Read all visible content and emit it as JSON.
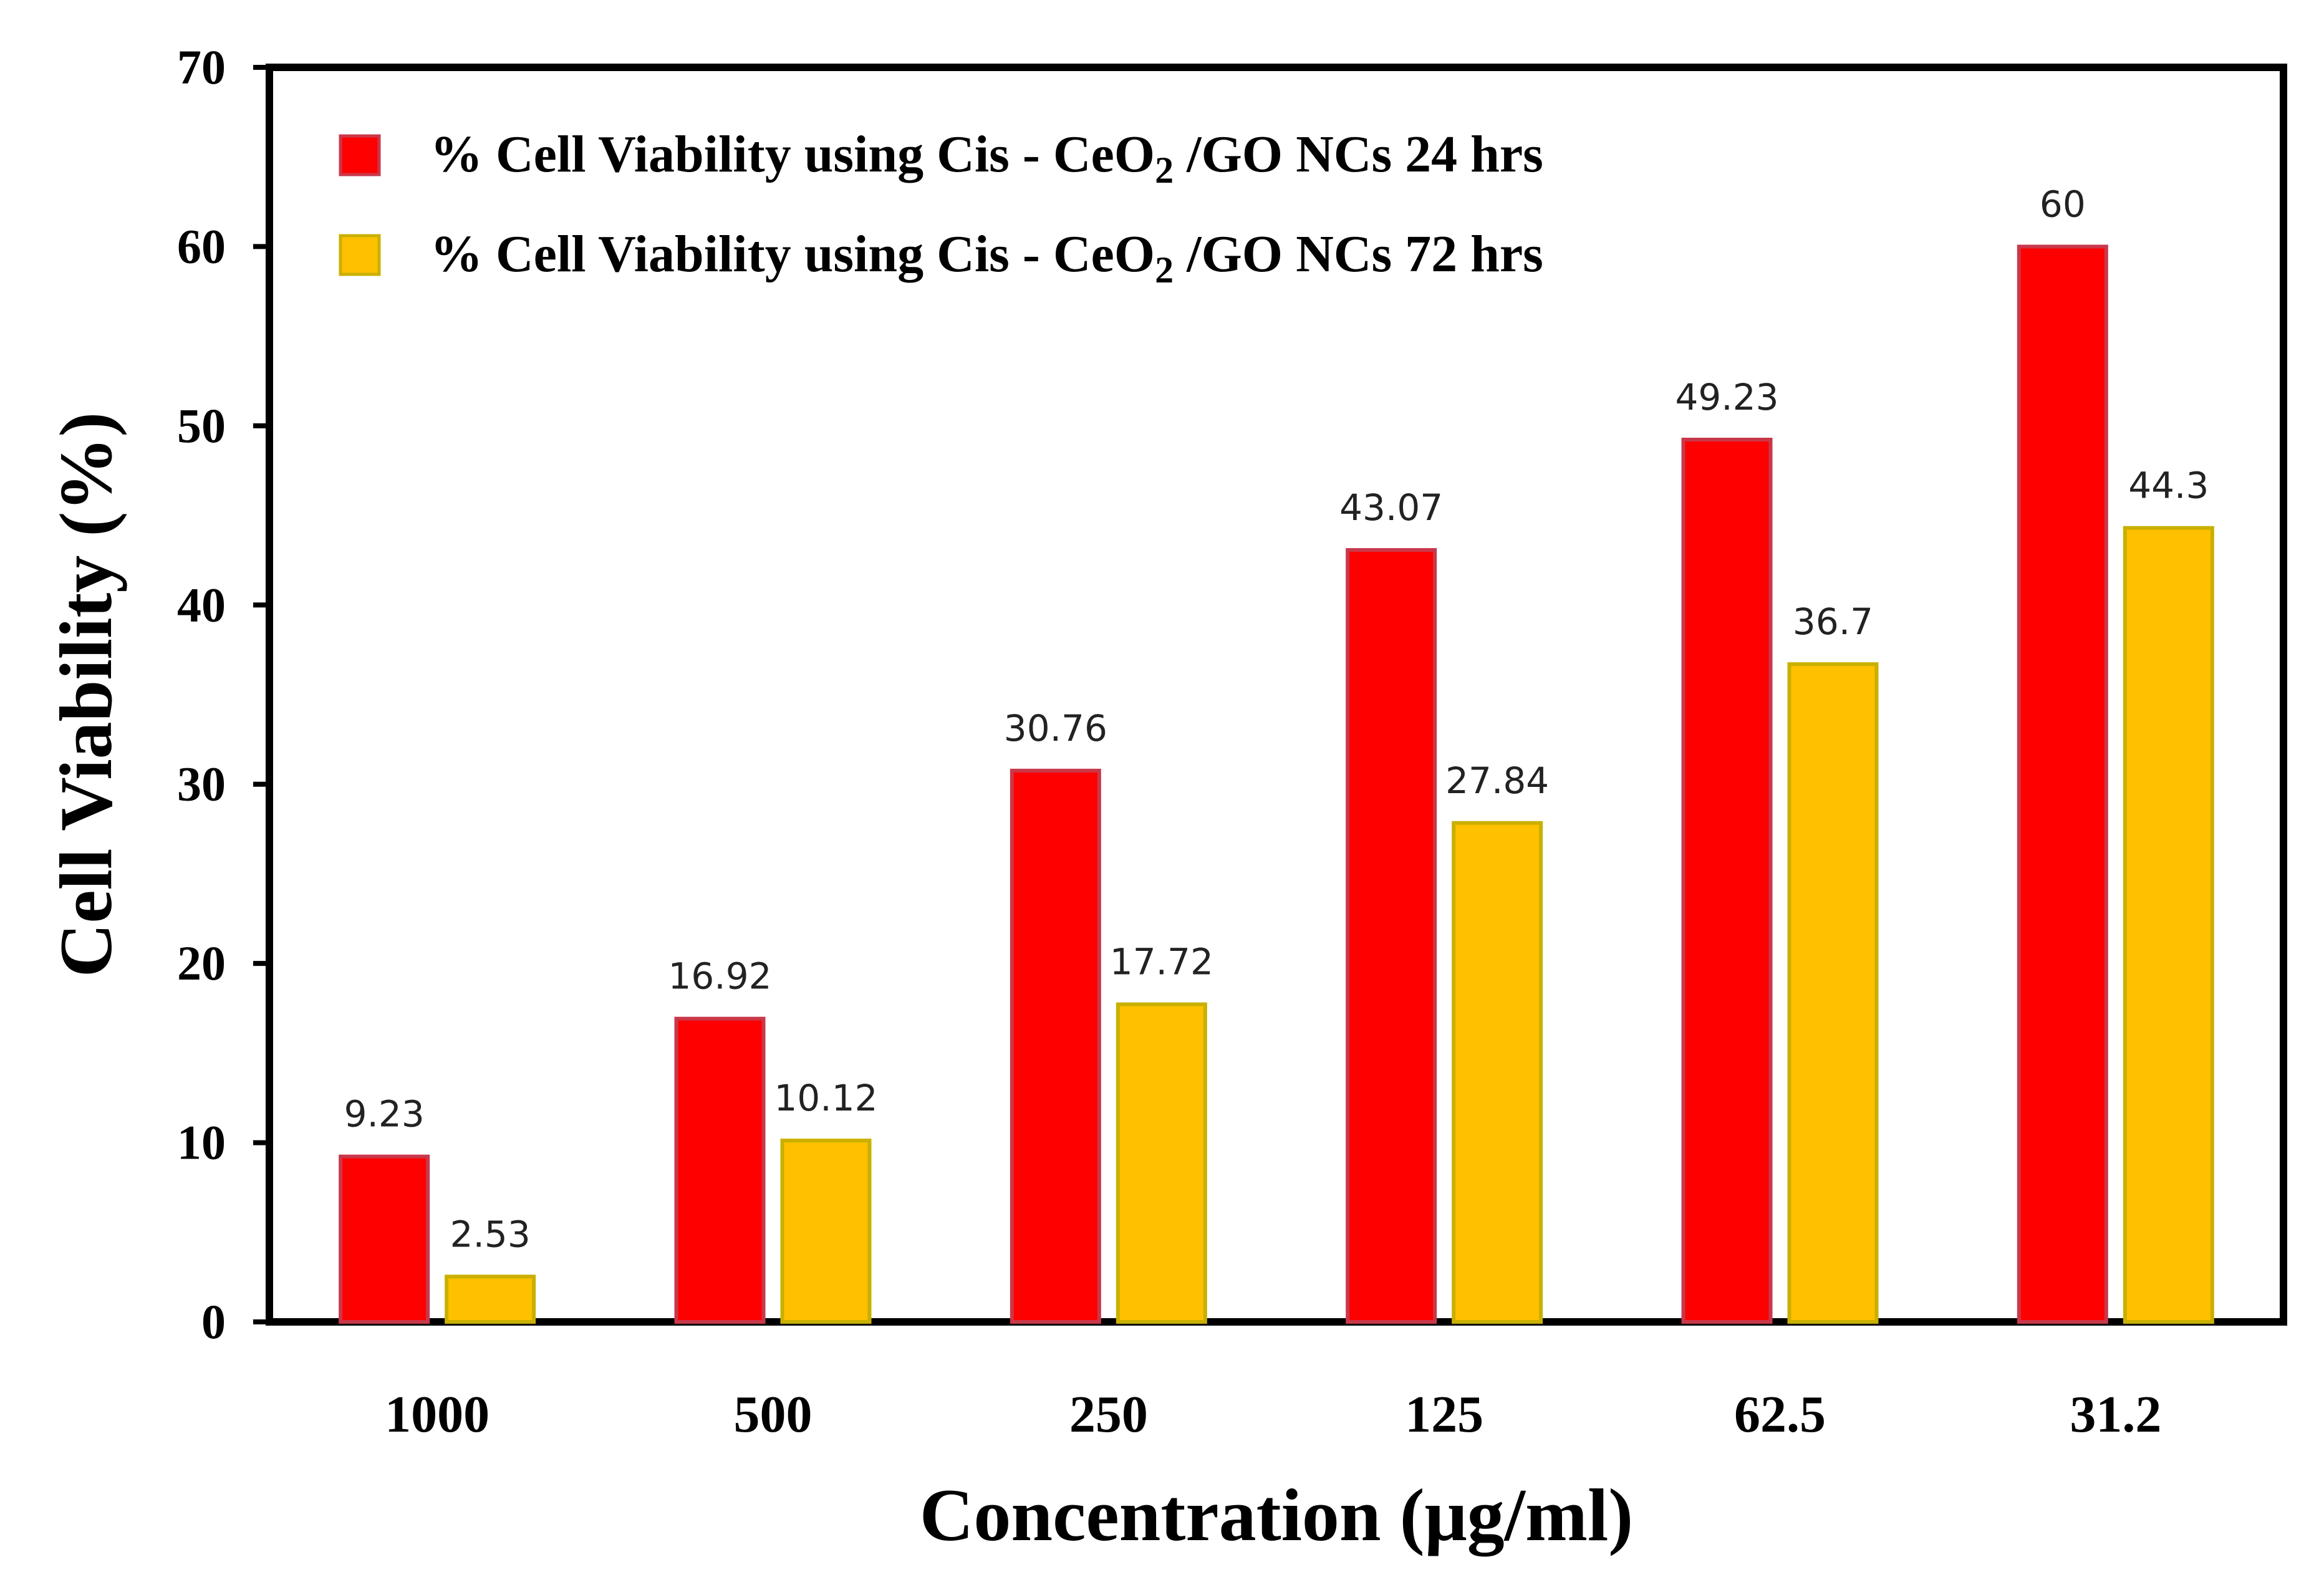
{
  "chart_data": {
    "type": "bar",
    "title": "",
    "xlabel": "Concentration (μg/ml)",
    "ylabel": "Cell Viability (%)",
    "ylim": [
      0,
      70
    ],
    "yticks": [
      0,
      10,
      20,
      30,
      40,
      50,
      60,
      70
    ],
    "categories": [
      "1000",
      "500",
      "250",
      "125",
      "62.5",
      "31.2"
    ],
    "series": [
      {
        "name": "% Cell Viability using Cis - CeO2 /GO NCs 24 hrs",
        "legend_pre": "% Cell Viability using Cis - CeO",
        "legend_sub": "2",
        "legend_post": " /GO NCs 24 hrs",
        "color": "#ff0000",
        "edge": "#c9384a",
        "values": [
          9.23,
          16.92,
          30.76,
          43.07,
          49.23,
          60
        ],
        "labels": [
          "9.23",
          "16.92",
          "30.76",
          "43.07",
          "49.23",
          "60"
        ]
      },
      {
        "name": "% Cell Viability using Cis - CeO2 /GO NCs 72 hrs",
        "legend_pre": "% Cell Viability using Cis - CeO",
        "legend_sub": "2",
        "legend_post": " /GO NCs 72 hrs",
        "color": "#ffc000",
        "edge": "#c9b000",
        "values": [
          2.53,
          10.12,
          17.72,
          27.84,
          36.7,
          44.3
        ],
        "labels": [
          "2.53",
          "10.12",
          "17.72",
          "27.84",
          "36.7",
          "44.3"
        ]
      }
    ],
    "legend_position": "top-left",
    "grid": false
  }
}
